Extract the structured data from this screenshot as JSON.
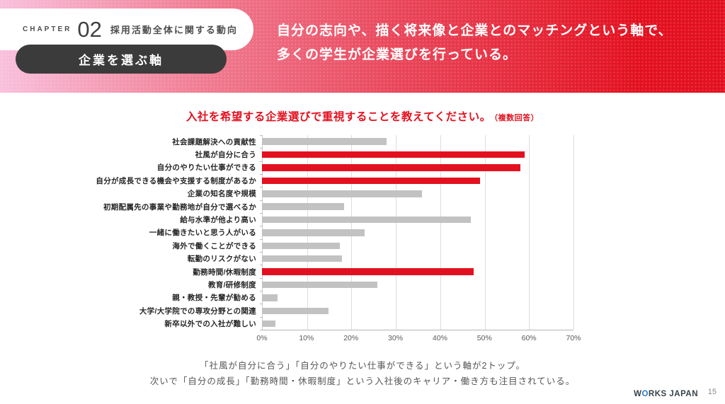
{
  "header": {
    "chapter_label": "CHAPTER",
    "chapter_number": "02",
    "chapter_title": "採用活動全体に関する動向",
    "badge": "企業を選ぶ軸",
    "headline_line1": "自分の志向や、描く将来像と企業とのマッチングという軸で、",
    "headline_line2": "多くの学生が企業選びを行っている。"
  },
  "chart_data": {
    "type": "bar",
    "orientation": "horizontal",
    "title": "入社を希望する企業選びで重視することを教えてください。",
    "title_note": "（複数回答）",
    "categories": [
      "社会課題解決への貢献性",
      "社風が自分に合う",
      "自分のやりたい仕事ができる",
      "自分が成長できる機会や支援する制度があるか",
      "企業の知名度や規模",
      "初期配属先の事業や勤務地が自分で選べるか",
      "給与水準が他より高い",
      "一緒に働きたいと思う人がいる",
      "海外で働くことができる",
      "転勤のリスクがない",
      "勤務時間/休暇制度",
      "教育/研修制度",
      "親・教授・先輩が勧める",
      "大学/大学院での専攻分野との関連",
      "新卒以外での入社が難しい"
    ],
    "values": [
      28,
      59,
      58,
      49,
      36,
      18.5,
      47,
      23,
      17.5,
      18,
      47.5,
      26,
      3.5,
      15,
      3
    ],
    "highlighted": [
      false,
      true,
      true,
      true,
      false,
      false,
      false,
      false,
      false,
      false,
      true,
      false,
      false,
      false,
      false
    ],
    "x_ticks": [
      "0%",
      "10%",
      "20%",
      "30%",
      "40%",
      "50%",
      "60%",
      "70%"
    ],
    "xlim": [
      0,
      70
    ],
    "xlabel": "",
    "ylabel": "",
    "grid": true,
    "legend": false,
    "bar_color_default": "#c2c2c2",
    "bar_color_highlight": "#e3111f"
  },
  "notes": {
    "line1": "「社風が自分に合う」「自分のやりたい仕事ができる」という軸が2トップ。",
    "line2": "次いで「自分の成長」「勤務時間・休暇制度」という入社後のキャリア・働き方も注目されている。"
  },
  "footer": {
    "logo_prefix": "W",
    "logo_o": "O",
    "logo_suffix": "RKS JAPAN",
    "page_number": "15"
  },
  "colors": {
    "accent_red": "#e3111f",
    "band_pink": "#f9c0dc",
    "badge_dark": "#3b3b3b",
    "bar_gray": "#c2c2c2"
  }
}
